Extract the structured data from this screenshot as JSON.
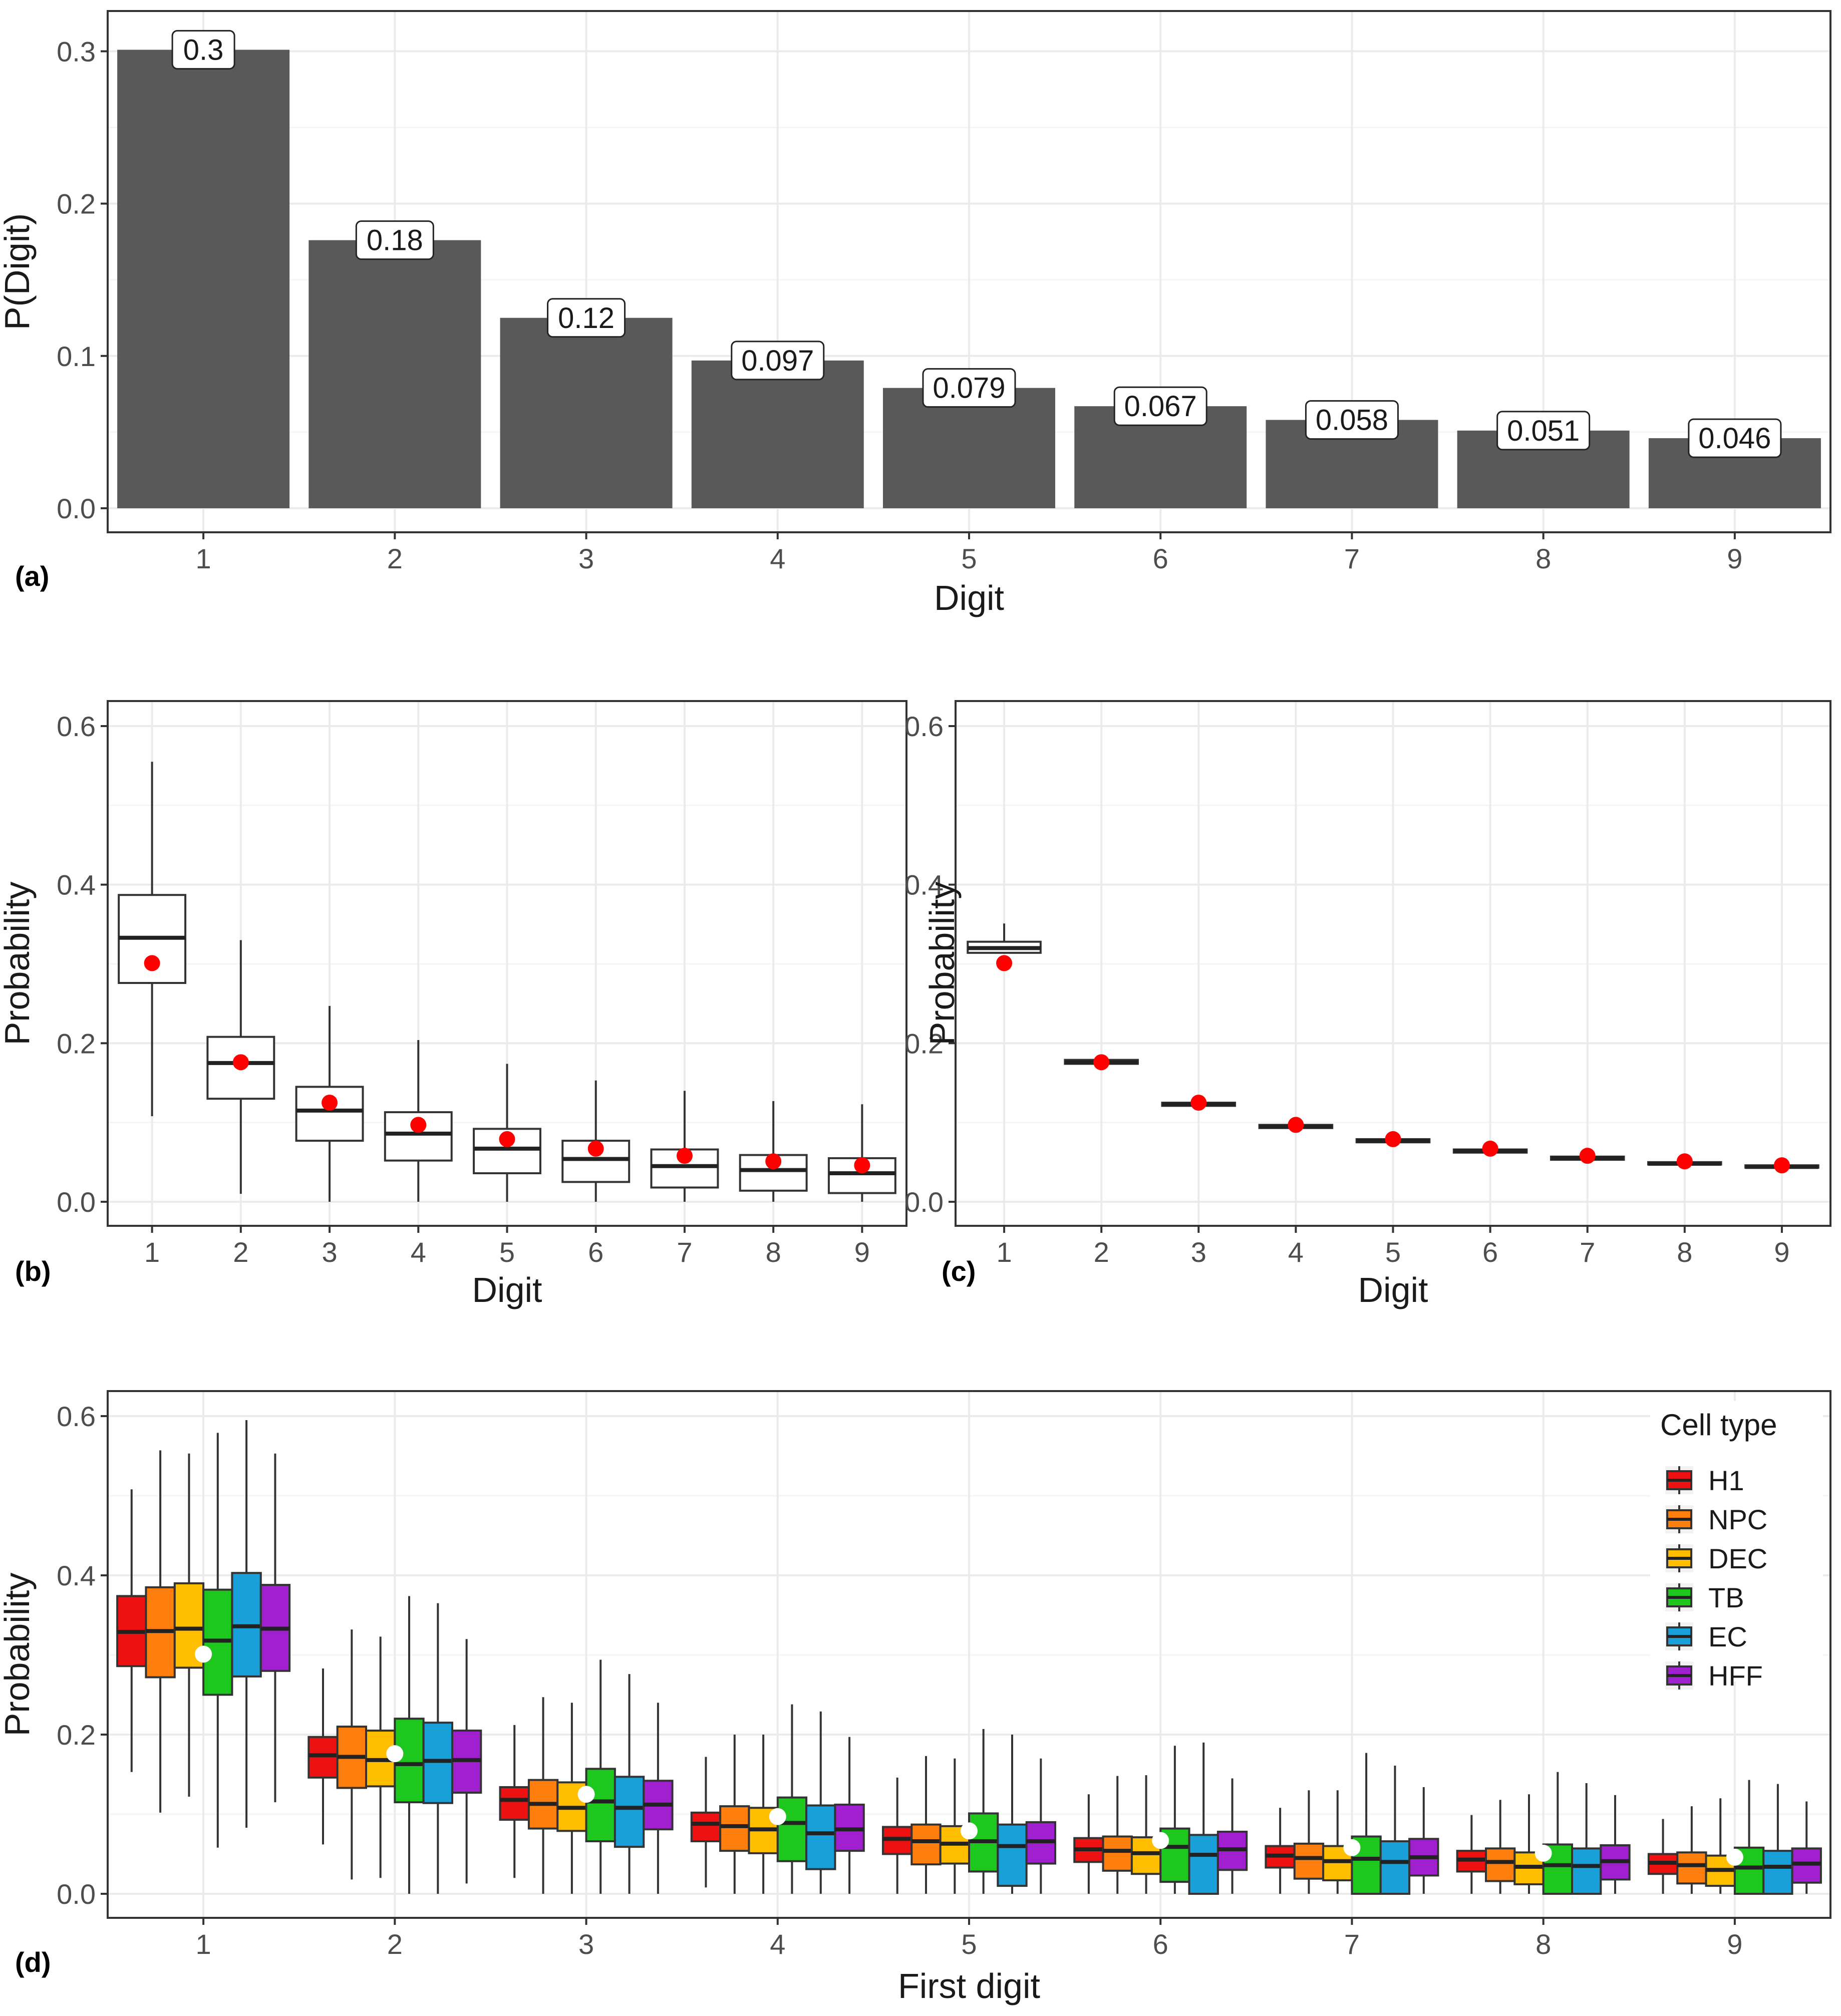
{
  "colors": {
    "bar": "#595959",
    "panel_border": "#333333",
    "grid_major": "#ebebeb",
    "grid_minor": "#f5f5f5",
    "axis_text": "#4d4d4d",
    "benford_point_bc": "#ff0000",
    "benford_point_d": "#ffffff",
    "H1": "#ee1111",
    "NPC": "#ff7f0e",
    "DEC": "#ffbf00",
    "TB": "#1ec71e",
    "EC": "#1aa0d8",
    "HFF": "#a020d0"
  },
  "chart_data": [
    {
      "id": "a",
      "panel_tag": "(a)",
      "type": "bar",
      "xlabel": "Digit",
      "ylabel": "P(Digit)",
      "ylim": [
        0,
        0.31
      ],
      "yticks": [
        "0.0",
        "0.1",
        "0.2",
        "0.3"
      ],
      "categories": [
        "1",
        "2",
        "3",
        "4",
        "5",
        "6",
        "7",
        "8",
        "9"
      ],
      "values": [
        0.301,
        0.176,
        0.125,
        0.097,
        0.079,
        0.067,
        0.058,
        0.051,
        0.046
      ],
      "value_labels": [
        "0.3",
        "0.18",
        "0.12",
        "0.097",
        "0.079",
        "0.067",
        "0.058",
        "0.051",
        "0.046"
      ],
      "grid": true
    },
    {
      "id": "b",
      "panel_tag": "(b)",
      "type": "box",
      "xlabel": "Digit",
      "ylabel": "Probability",
      "ylim": [
        0,
        0.6
      ],
      "yticks": [
        "0.0",
        "0.2",
        "0.4",
        "0.6"
      ],
      "categories": [
        "1",
        "2",
        "3",
        "4",
        "5",
        "6",
        "7",
        "8",
        "9"
      ],
      "boxes": [
        {
          "min": 0.108,
          "q1": 0.276,
          "median": 0.333,
          "q3": 0.387,
          "max": 0.555
        },
        {
          "min": 0.01,
          "q1": 0.13,
          "median": 0.175,
          "q3": 0.208,
          "max": 0.33
        },
        {
          "min": 0.0,
          "q1": 0.077,
          "median": 0.115,
          "q3": 0.145,
          "max": 0.247
        },
        {
          "min": 0.0,
          "q1": 0.052,
          "median": 0.086,
          "q3": 0.113,
          "max": 0.204
        },
        {
          "min": 0.0,
          "q1": 0.036,
          "median": 0.067,
          "q3": 0.092,
          "max": 0.174
        },
        {
          "min": 0.0,
          "q1": 0.025,
          "median": 0.054,
          "q3": 0.077,
          "max": 0.153
        },
        {
          "min": 0.0,
          "q1": 0.018,
          "median": 0.045,
          "q3": 0.066,
          "max": 0.14
        },
        {
          "min": 0.0,
          "q1": 0.014,
          "median": 0.04,
          "q3": 0.059,
          "max": 0.127
        },
        {
          "min": 0.0,
          "q1": 0.011,
          "median": 0.036,
          "q3": 0.055,
          "max": 0.123
        }
      ],
      "points": [
        0.301,
        0.176,
        0.125,
        0.097,
        0.079,
        0.067,
        0.058,
        0.051,
        0.046
      ],
      "grid": true
    },
    {
      "id": "c",
      "panel_tag": "(c)",
      "type": "box",
      "xlabel": "Digit",
      "ylabel": "Probability",
      "ylim": [
        0,
        0.6
      ],
      "yticks": [
        "0.0",
        "0.2",
        "0.4",
        "0.6"
      ],
      "categories": [
        "1",
        "2",
        "3",
        "4",
        "5",
        "6",
        "7",
        "8",
        "9"
      ],
      "boxes": [
        {
          "min": 0.313,
          "q1": 0.314,
          "median": 0.32,
          "q3": 0.328,
          "max": 0.351
        },
        {
          "min": 0.172,
          "q1": 0.174,
          "median": 0.176,
          "q3": 0.179,
          "max": 0.183
        },
        {
          "min": 0.12,
          "q1": 0.121,
          "median": 0.123,
          "q3": 0.125,
          "max": 0.128
        },
        {
          "min": 0.092,
          "q1": 0.093,
          "median": 0.095,
          "q3": 0.097,
          "max": 0.1
        },
        {
          "min": 0.074,
          "q1": 0.075,
          "median": 0.077,
          "q3": 0.079,
          "max": 0.081
        },
        {
          "min": 0.061,
          "q1": 0.062,
          "median": 0.064,
          "q3": 0.066,
          "max": 0.068
        },
        {
          "min": 0.052,
          "q1": 0.053,
          "median": 0.055,
          "q3": 0.057,
          "max": 0.059
        },
        {
          "min": 0.046,
          "q1": 0.047,
          "median": 0.048,
          "q3": 0.05,
          "max": 0.052
        },
        {
          "min": 0.042,
          "q1": 0.043,
          "median": 0.044,
          "q3": 0.046,
          "max": 0.048
        }
      ],
      "points": [
        0.301,
        0.176,
        0.125,
        0.097,
        0.079,
        0.067,
        0.058,
        0.051,
        0.046
      ],
      "grid": true
    },
    {
      "id": "d",
      "panel_tag": "(d)",
      "type": "box",
      "xlabel": "First digit",
      "ylabel": "Probability",
      "ylim": [
        0,
        0.6
      ],
      "yticks": [
        "0.0",
        "0.2",
        "0.4",
        "0.6"
      ],
      "categories": [
        "1",
        "2",
        "3",
        "4",
        "5",
        "6",
        "7",
        "8",
        "9"
      ],
      "legend": {
        "title": "Cell type",
        "position": "top-right"
      },
      "series": [
        {
          "name": "H1",
          "boxes": [
            {
              "min": 0.153,
              "q1": 0.286,
              "median": 0.329,
              "q3": 0.374,
              "max": 0.508
            },
            {
              "min": 0.062,
              "q1": 0.146,
              "median": 0.174,
              "q3": 0.197,
              "max": 0.283
            },
            {
              "min": 0.02,
              "q1": 0.093,
              "median": 0.118,
              "q3": 0.134,
              "max": 0.212
            },
            {
              "min": 0.008,
              "q1": 0.066,
              "median": 0.088,
              "q3": 0.102,
              "max": 0.172
            },
            {
              "min": 0.0,
              "q1": 0.05,
              "median": 0.069,
              "q3": 0.084,
              "max": 0.146
            },
            {
              "min": 0.0,
              "q1": 0.04,
              "median": 0.056,
              "q3": 0.07,
              "max": 0.125
            },
            {
              "min": 0.0,
              "q1": 0.033,
              "median": 0.048,
              "q3": 0.06,
              "max": 0.108
            },
            {
              "min": 0.0,
              "q1": 0.028,
              "median": 0.043,
              "q3": 0.054,
              "max": 0.099
            },
            {
              "min": 0.0,
              "q1": 0.025,
              "median": 0.039,
              "q3": 0.05,
              "max": 0.094
            }
          ]
        },
        {
          "name": "NPC",
          "boxes": [
            {
              "min": 0.102,
              "q1": 0.272,
              "median": 0.33,
              "q3": 0.385,
              "max": 0.557
            },
            {
              "min": 0.018,
              "q1": 0.133,
              "median": 0.172,
              "q3": 0.21,
              "max": 0.332
            },
            {
              "min": 0.0,
              "q1": 0.082,
              "median": 0.113,
              "q3": 0.143,
              "max": 0.247
            },
            {
              "min": 0.0,
              "q1": 0.054,
              "median": 0.085,
              "q3": 0.11,
              "max": 0.2
            },
            {
              "min": 0.0,
              "q1": 0.037,
              "median": 0.066,
              "q3": 0.087,
              "max": 0.173
            },
            {
              "min": 0.0,
              "q1": 0.029,
              "median": 0.054,
              "q3": 0.072,
              "max": 0.148
            },
            {
              "min": 0.0,
              "q1": 0.019,
              "median": 0.045,
              "q3": 0.063,
              "max": 0.13
            },
            {
              "min": 0.0,
              "q1": 0.016,
              "median": 0.04,
              "q3": 0.057,
              "max": 0.118
            },
            {
              "min": 0.0,
              "q1": 0.013,
              "median": 0.036,
              "q3": 0.052,
              "max": 0.11
            }
          ]
        },
        {
          "name": "DEC",
          "boxes": [
            {
              "min": 0.122,
              "q1": 0.284,
              "median": 0.333,
              "q3": 0.39,
              "max": 0.553
            },
            {
              "min": 0.02,
              "q1": 0.135,
              "median": 0.168,
              "q3": 0.205,
              "max": 0.323
            },
            {
              "min": 0.0,
              "q1": 0.079,
              "median": 0.108,
              "q3": 0.14,
              "max": 0.24
            },
            {
              "min": 0.0,
              "q1": 0.051,
              "median": 0.081,
              "q3": 0.108,
              "max": 0.2
            },
            {
              "min": 0.0,
              "q1": 0.038,
              "median": 0.063,
              "q3": 0.085,
              "max": 0.17
            },
            {
              "min": 0.0,
              "q1": 0.025,
              "median": 0.051,
              "q3": 0.071,
              "max": 0.149
            },
            {
              "min": 0.0,
              "q1": 0.017,
              "median": 0.041,
              "q3": 0.06,
              "max": 0.13
            },
            {
              "min": 0.0,
              "q1": 0.012,
              "median": 0.034,
              "q3": 0.052,
              "max": 0.125
            },
            {
              "min": 0.0,
              "q1": 0.01,
              "median": 0.03,
              "q3": 0.048,
              "max": 0.12
            }
          ]
        },
        {
          "name": "TB",
          "boxes": [
            {
              "min": 0.058,
              "q1": 0.25,
              "median": 0.318,
              "q3": 0.382,
              "max": 0.579
            },
            {
              "min": 0.0,
              "q1": 0.115,
              "median": 0.163,
              "q3": 0.22,
              "max": 0.374
            },
            {
              "min": 0.0,
              "q1": 0.066,
              "median": 0.116,
              "q3": 0.157,
              "max": 0.294
            },
            {
              "min": 0.0,
              "q1": 0.041,
              "median": 0.089,
              "q3": 0.121,
              "max": 0.238
            },
            {
              "min": 0.0,
              "q1": 0.028,
              "median": 0.066,
              "q3": 0.101,
              "max": 0.207
            },
            {
              "min": 0.0,
              "q1": 0.015,
              "median": 0.059,
              "q3": 0.082,
              "max": 0.186
            },
            {
              "min": 0.0,
              "q1": 0.0,
              "median": 0.044,
              "q3": 0.072,
              "max": 0.177
            },
            {
              "min": 0.0,
              "q1": 0.0,
              "median": 0.036,
              "q3": 0.062,
              "max": 0.153
            },
            {
              "min": 0.0,
              "q1": 0.0,
              "median": 0.033,
              "q3": 0.058,
              "max": 0.143
            }
          ]
        },
        {
          "name": "EC",
          "boxes": [
            {
              "min": 0.083,
              "q1": 0.273,
              "median": 0.336,
              "q3": 0.403,
              "max": 0.595
            },
            {
              "min": 0.0,
              "q1": 0.114,
              "median": 0.167,
              "q3": 0.215,
              "max": 0.365
            },
            {
              "min": 0.0,
              "q1": 0.059,
              "median": 0.108,
              "q3": 0.147,
              "max": 0.276
            },
            {
              "min": 0.0,
              "q1": 0.031,
              "median": 0.076,
              "q3": 0.111,
              "max": 0.229
            },
            {
              "min": 0.0,
              "q1": 0.01,
              "median": 0.06,
              "q3": 0.087,
              "max": 0.2
            },
            {
              "min": 0.0,
              "q1": 0.0,
              "median": 0.049,
              "q3": 0.074,
              "max": 0.19
            },
            {
              "min": 0.0,
              "q1": 0.0,
              "median": 0.04,
              "q3": 0.066,
              "max": 0.161
            },
            {
              "min": 0.0,
              "q1": 0.0,
              "median": 0.035,
              "q3": 0.057,
              "max": 0.139
            },
            {
              "min": 0.0,
              "q1": 0.0,
              "median": 0.034,
              "q3": 0.054,
              "max": 0.138
            }
          ]
        },
        {
          "name": "HFF",
          "boxes": [
            {
              "min": 0.115,
              "q1": 0.28,
              "median": 0.333,
              "q3": 0.388,
              "max": 0.553
            },
            {
              "min": 0.013,
              "q1": 0.127,
              "median": 0.168,
              "q3": 0.205,
              "max": 0.32
            },
            {
              "min": 0.0,
              "q1": 0.081,
              "median": 0.112,
              "q3": 0.142,
              "max": 0.24
            },
            {
              "min": 0.0,
              "q1": 0.054,
              "median": 0.081,
              "q3": 0.112,
              "max": 0.197
            },
            {
              "min": 0.0,
              "q1": 0.038,
              "median": 0.066,
              "q3": 0.09,
              "max": 0.17
            },
            {
              "min": 0.0,
              "q1": 0.03,
              "median": 0.056,
              "q3": 0.078,
              "max": 0.145
            },
            {
              "min": 0.0,
              "q1": 0.023,
              "median": 0.046,
              "q3": 0.069,
              "max": 0.134
            },
            {
              "min": 0.0,
              "q1": 0.018,
              "median": 0.041,
              "q3": 0.061,
              "max": 0.124
            },
            {
              "min": 0.0,
              "q1": 0.014,
              "median": 0.038,
              "q3": 0.057,
              "max": 0.116
            }
          ]
        }
      ],
      "points": [
        0.301,
        0.176,
        0.125,
        0.097,
        0.079,
        0.067,
        0.058,
        0.051,
        0.046
      ],
      "grid": true
    }
  ]
}
